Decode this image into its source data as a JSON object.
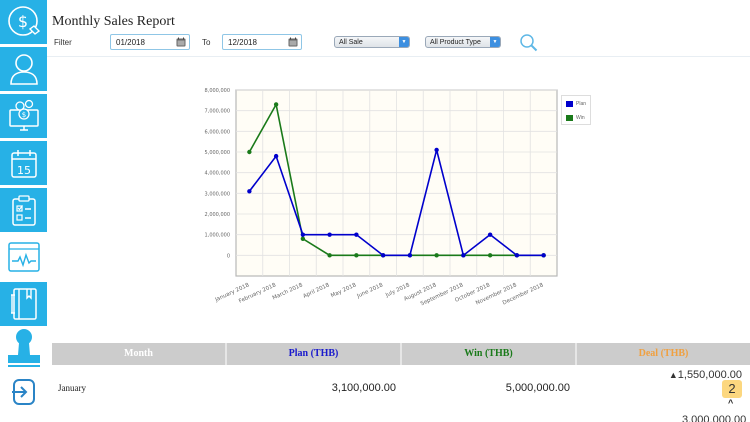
{
  "header": {
    "title": "Monthly Sales Report",
    "filter_label": "Filter",
    "to_label": "To",
    "date_from": "01/2018",
    "date_to": "12/2018",
    "sale_select": "All Sale",
    "product_select": "All Product Type"
  },
  "sidebar": {
    "items": [
      {
        "icon": "dollar-touch-icon",
        "active": true
      },
      {
        "icon": "user-icon",
        "active": true
      },
      {
        "icon": "money-monitor-icon",
        "active": true
      },
      {
        "icon": "calendar-icon",
        "active": true,
        "text": "15"
      },
      {
        "icon": "checklist-icon",
        "active": true
      },
      {
        "icon": "activity-monitor-icon",
        "active": false
      },
      {
        "icon": "notebook-icon",
        "active": true
      },
      {
        "icon": "stamp-icon",
        "active": false
      },
      {
        "icon": "logout-icon",
        "active": false
      }
    ]
  },
  "colors": {
    "sidebar": "#27b1e6",
    "plan": "#0000cc",
    "win": "#1a7a1a",
    "deal": "#f0a040",
    "header_bg": "#cccccc"
  },
  "chart_data": {
    "type": "line",
    "title": "",
    "xlabel": "",
    "ylabel": "",
    "categories": [
      "January 2018",
      "February 2018",
      "March 2018",
      "April 2018",
      "May 2018",
      "June 2018",
      "July 2018",
      "August 2018",
      "September 2018",
      "October 2018",
      "November 2018",
      "December 2018"
    ],
    "series": [
      {
        "name": "Plan",
        "color": "#0000cc",
        "values": [
          3100000,
          4800000,
          1000000,
          1000000,
          1000000,
          0,
          0,
          5100000,
          0,
          1000000,
          0,
          0
        ]
      },
      {
        "name": "Win",
        "color": "#1a7a1a",
        "values": [
          5000000,
          7300000,
          800000,
          0,
          0,
          0,
          0,
          0,
          0,
          0,
          0,
          0
        ]
      }
    ],
    "yticks": [
      "8,000,000",
      "7,000,000",
      "6,000,000",
      "5,000,000",
      "4,000,000",
      "3,000,000",
      "2,000,000",
      "1,000,000",
      "0"
    ],
    "ylim": [
      -1000000,
      8000000
    ],
    "grid": true,
    "legend_position": "right"
  },
  "table": {
    "headers": {
      "month": "Month",
      "plan": "Plan (THB)",
      "win": "Win (THB)",
      "deal": "Deal (THB)"
    },
    "rows": [
      {
        "month": "January",
        "plan": "3,100,000.00",
        "win": "5,000,000.00",
        "deal": "^1,550,000.00",
        "badge": "2"
      }
    ],
    "next_deal_partial": "3,000,000.00"
  }
}
